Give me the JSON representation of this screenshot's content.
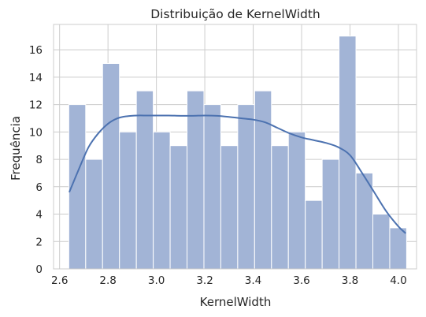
{
  "chart_data": {
    "type": "bar",
    "subtype": "histogram-with-kde",
    "title": "Distribuição de KernelWidth",
    "xlabel": "KernelWidth",
    "ylabel": "Frequência",
    "xlim": [
      2.575,
      4.075
    ],
    "ylim": [
      0,
      17.85
    ],
    "x_ticks": [
      2.6,
      2.8,
      3.0,
      3.2,
      3.4,
      3.6,
      3.8,
      4.0
    ],
    "x_tick_labels": [
      "2.6",
      "2.8",
      "3.0",
      "3.2",
      "3.4",
      "3.6",
      "3.8",
      "4.0"
    ],
    "y_ticks": [
      0,
      2,
      4,
      6,
      8,
      10,
      12,
      14,
      16
    ],
    "y_tick_labels": [
      "0",
      "2",
      "4",
      "6",
      "8",
      "10",
      "12",
      "14",
      "16"
    ],
    "grid": true,
    "bin_edges": [
      2.638,
      2.7078,
      2.7776,
      2.8474,
      2.9172,
      2.987,
      3.0568,
      3.1266,
      3.1964,
      3.2662,
      3.336,
      3.4058,
      3.4756,
      3.5454,
      3.6152,
      3.685,
      3.7548,
      3.8246,
      3.8944,
      3.9642,
      4.034
    ],
    "counts": [
      12,
      8,
      15,
      10,
      13,
      10,
      9,
      13,
      12,
      9,
      12,
      13,
      9,
      10,
      5,
      8,
      17,
      7,
      4,
      3
    ],
    "kde": {
      "x": [
        2.64,
        2.68,
        2.72,
        2.76,
        2.8,
        2.84,
        2.88,
        2.92,
        2.96,
        3.0,
        3.05,
        3.1,
        3.15,
        3.2,
        3.25,
        3.3,
        3.35,
        3.4,
        3.45,
        3.5,
        3.55,
        3.6,
        3.65,
        3.7,
        3.75,
        3.8,
        3.85,
        3.9,
        3.95,
        4.0,
        4.03
      ],
      "y": [
        5.6,
        7.3,
        8.9,
        9.9,
        10.6,
        11.0,
        11.15,
        11.2,
        11.2,
        11.2,
        11.2,
        11.18,
        11.18,
        11.2,
        11.18,
        11.1,
        11.0,
        10.9,
        10.7,
        10.3,
        9.9,
        9.6,
        9.4,
        9.2,
        8.9,
        8.3,
        7.0,
        5.6,
        4.2,
        3.1,
        2.6
      ]
    },
    "colors": {
      "bar_fill": "#a2b4d6",
      "bar_edge": "#ffffff",
      "kde_line": "#4c72b0",
      "grid": "#cccccc",
      "text": "#262626"
    }
  }
}
